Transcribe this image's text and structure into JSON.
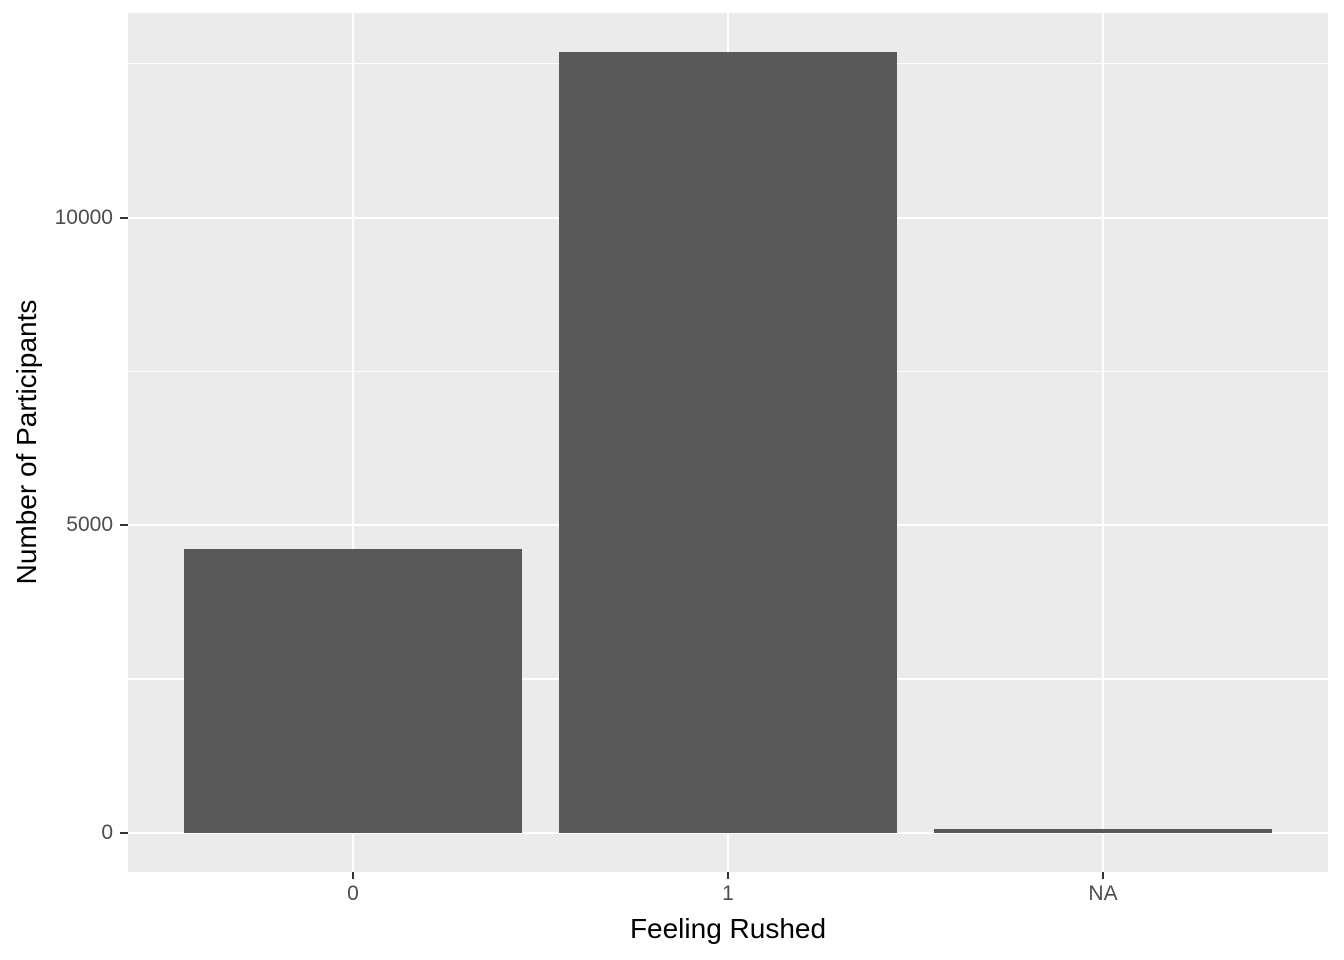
{
  "chart_data": {
    "type": "bar",
    "title": "",
    "xlabel": "Feeling Rushed",
    "ylabel": "Number of Participants",
    "categories": [
      "0",
      "1",
      "NA"
    ],
    "values": [
      4620,
      12690,
      60
    ],
    "y_ticks_major": [
      0,
      5000,
      10000
    ],
    "y_ticks_minor": [
      2500,
      7500,
      12500
    ],
    "y_tick_labels": [
      "0",
      "5000",
      "10000"
    ],
    "ylim": [
      -635,
      13325
    ],
    "bar_width_fraction": 0.9,
    "legend": "none",
    "grid": {
      "horizontal": "major+minor",
      "vertical": "major-at-categories"
    },
    "theme": {
      "panel_background": "#EBEBEB",
      "grid_color": "#FFFFFF",
      "bar_fill": "#595959",
      "axis_text_color": "#4D4D4D",
      "axis_title_color": "#000000",
      "tick_mark_color": "#333333",
      "outer_background": "#FFFFFF"
    }
  }
}
